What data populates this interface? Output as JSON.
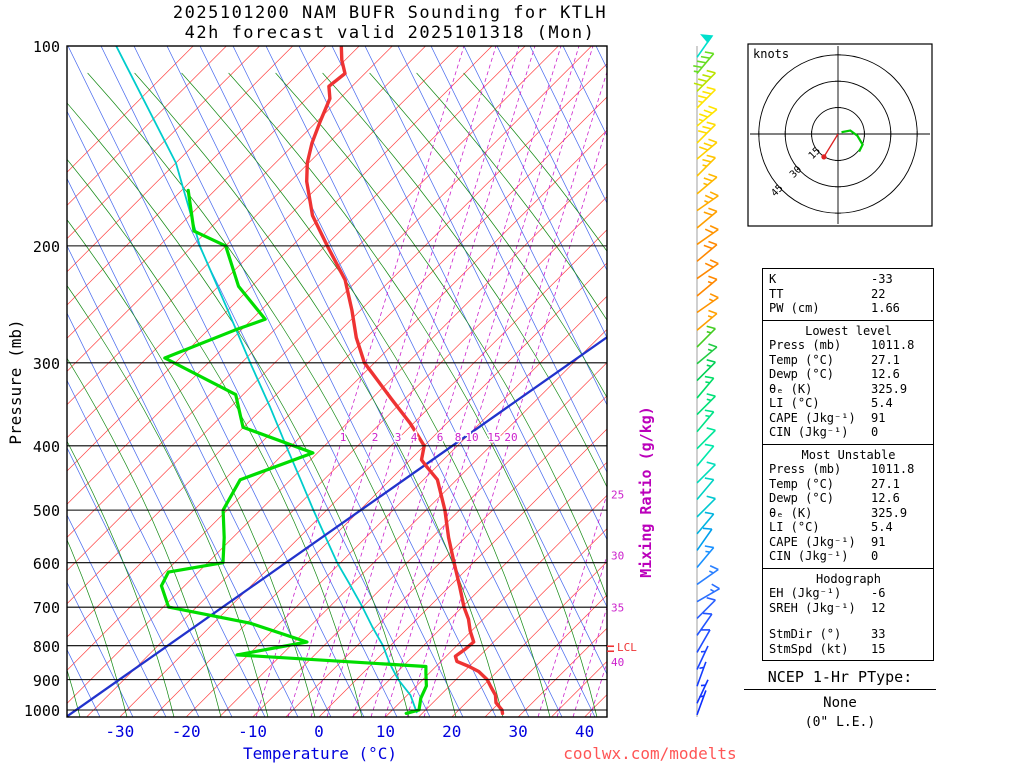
{
  "title": {
    "line1": "2025101200 NAM BUFR Sounding for KTLH",
    "line2": "42h forecast valid 2025101318 (Mon)"
  },
  "watermark": "coolwx.com/modelts",
  "axes": {
    "xlabel": "Temperature (°C)",
    "ylabel": "Pressure (mb)",
    "mixing_axis_label": "Mixing Ratio (g/kg)",
    "x_ticks": [
      -30,
      -20,
      -10,
      0,
      10,
      20,
      30,
      40
    ],
    "p_ticks": [
      100,
      200,
      300,
      400,
      500,
      600,
      700,
      800,
      900,
      1000
    ]
  },
  "colors": {
    "temperature": "#ee3333",
    "dewpoint": "#00dd00",
    "wetbulb": "#00cccc",
    "isotherm": "#ff4444",
    "dry_adiabat": "#4466ee",
    "moist_adiabat": "#118811",
    "mixing_ratio": "#cc22cc",
    "axis_blue": "#0000dd",
    "reference_blue": "#2233cc",
    "watermark_red": "#ff5555",
    "hodo_trace_green": "#00cc00",
    "hodo_storm_red": "#dd2222"
  },
  "chart_data": {
    "type": "line",
    "subtype": "skew-t-log-p-sounding",
    "skewt": {
      "pressure_range_mb": [
        100,
        1025
      ],
      "temp_axis_range_c": [
        -40,
        45
      ],
      "isotherm_step_c": 5,
      "lcl_label": "LCL",
      "lcl_pressure_mb": 810,
      "temperature_profile": [
        [
          1012,
          27.1
        ],
        [
          1000,
          26.5
        ],
        [
          975,
          24.5
        ],
        [
          950,
          23.3
        ],
        [
          925,
          21.5
        ],
        [
          900,
          19.7
        ],
        [
          875,
          17.2
        ],
        [
          860,
          15.0
        ],
        [
          845,
          12.4
        ],
        [
          830,
          11.4
        ],
        [
          810,
          11.8
        ],
        [
          790,
          12.0
        ],
        [
          760,
          9.8
        ],
        [
          730,
          7.8
        ],
        [
          700,
          5.3
        ],
        [
          650,
          1.4
        ],
        [
          600,
          -2.9
        ],
        [
          550,
          -7.5
        ],
        [
          500,
          -12.2
        ],
        [
          450,
          -17.9
        ],
        [
          430,
          -21.5
        ],
        [
          420,
          -23.3
        ],
        [
          400,
          -25.0
        ],
        [
          370,
          -30.5
        ],
        [
          340,
          -37.0
        ],
        [
          310,
          -44.0
        ],
        [
          300,
          -46.5
        ],
        [
          275,
          -51.5
        ],
        [
          250,
          -56.3
        ],
        [
          225,
          -61.9
        ],
        [
          200,
          -69.7
        ],
        [
          180,
          -76.5
        ],
        [
          160,
          -82.5
        ],
        [
          150,
          -85.2
        ],
        [
          140,
          -87.5
        ],
        [
          130,
          -89.5
        ],
        [
          120,
          -91.5
        ],
        [
          115,
          -93.5
        ],
        [
          110,
          -93.0
        ],
        [
          105,
          -95.5
        ],
        [
          100,
          -97.7
        ]
      ],
      "dewpoint_profile": [
        [
          1012,
          12.6
        ],
        [
          1000,
          14.0
        ],
        [
          960,
          12.5
        ],
        [
          920,
          11.5
        ],
        [
          880,
          9.5
        ],
        [
          860,
          8.5
        ],
        [
          826,
          -21.7
        ],
        [
          790,
          -13.1
        ],
        [
          740,
          -24.5
        ],
        [
          700,
          -39.2
        ],
        [
          650,
          -43.5
        ],
        [
          620,
          -44.5
        ],
        [
          600,
          -37.7
        ],
        [
          550,
          -41.3
        ],
        [
          500,
          -45.6
        ],
        [
          450,
          -47.6
        ],
        [
          410,
          -40.7
        ],
        [
          375,
          -55.1
        ],
        [
          335,
          -61.1
        ],
        [
          295,
          -77.3
        ],
        [
          268,
          -71.0
        ],
        [
          258,
          -68.0
        ],
        [
          230,
          -77.0
        ],
        [
          200,
          -85.0
        ],
        [
          190,
          -92.0
        ],
        [
          165,
          -99.0
        ]
      ],
      "wetbulb_profile": [
        [
          1008,
          14.0
        ],
        [
          950,
          10.5
        ],
        [
          900,
          6.3
        ],
        [
          850,
          2.5
        ],
        [
          800,
          -1.1
        ],
        [
          750,
          -5.5
        ],
        [
          700,
          -10.0
        ],
        [
          650,
          -15.0
        ],
        [
          600,
          -20.5
        ],
        [
          550,
          -26.0
        ],
        [
          500,
          -32.0
        ],
        [
          450,
          -38.5
        ],
        [
          400,
          -45.8
        ],
        [
          350,
          -54.0
        ],
        [
          300,
          -63.7
        ],
        [
          250,
          -75.0
        ],
        [
          200,
          -88.9
        ],
        [
          150,
          -105.0
        ],
        [
          100,
          -131.6
        ]
      ],
      "reference_line": [
        [
          1020,
          -38.0
        ],
        [
          270,
          -13.5
        ]
      ],
      "mixing_ratio_lines": [
        [
          1,
          256
        ],
        [
          2,
          288
        ],
        [
          3,
          311
        ],
        [
          4,
          327
        ],
        [
          6,
          353
        ],
        [
          8,
          371
        ],
        [
          10,
          385
        ],
        [
          15,
          407
        ],
        [
          20,
          424
        ],
        [
          25,
          538
        ],
        [
          30,
          557
        ],
        [
          35,
          573
        ],
        [
          40,
          590
        ]
      ]
    },
    "wind_barbs": [
      {
        "p": 104,
        "dir": 35,
        "spd": 50,
        "color": "#00e0cc"
      },
      {
        "p": 110,
        "dir": 40,
        "spd": 45,
        "color": "#66dd22"
      },
      {
        "p": 117,
        "dir": 45,
        "spd": 40,
        "color": "#bbe300"
      },
      {
        "p": 124,
        "dir": 45,
        "spd": 35,
        "color": "#ffe400"
      },
      {
        "p": 132,
        "dir": 50,
        "spd": 35,
        "color": "#ffe400"
      },
      {
        "p": 140,
        "dir": 45,
        "spd": 30,
        "color": "#ffdc00"
      },
      {
        "p": 148,
        "dir": 50,
        "spd": 30,
        "color": "#ffd000"
      },
      {
        "p": 157,
        "dir": 45,
        "spd": 25,
        "color": "#ffc400"
      },
      {
        "p": 167,
        "dir": 50,
        "spd": 25,
        "color": "#ffb800"
      },
      {
        "p": 177,
        "dir": 55,
        "spd": 25,
        "color": "#ffac00"
      },
      {
        "p": 188,
        "dir": 50,
        "spd": 20,
        "color": "#ffa000"
      },
      {
        "p": 199,
        "dir": 55,
        "spd": 20,
        "color": "#ff9400"
      },
      {
        "p": 211,
        "dir": 50,
        "spd": 20,
        "color": "#ff8800"
      },
      {
        "p": 224,
        "dir": 55,
        "spd": 20,
        "color": "#ff8800"
      },
      {
        "p": 238,
        "dir": 50,
        "spd": 15,
        "color": "#ff8800"
      },
      {
        "p": 252,
        "dir": 55,
        "spd": 15,
        "color": "#ff9400"
      },
      {
        "p": 268,
        "dir": 50,
        "spd": 15,
        "color": "#ffa000"
      },
      {
        "p": 284,
        "dir": 45,
        "spd": 15,
        "color": "#44cc22"
      },
      {
        "p": 301,
        "dir": 50,
        "spd": 15,
        "color": "#22cc44"
      },
      {
        "p": 319,
        "dir": 45,
        "spd": 15,
        "color": "#00d055"
      },
      {
        "p": 339,
        "dir": 40,
        "spd": 15,
        "color": "#00dd66"
      },
      {
        "p": 359,
        "dir": 45,
        "spd": 15,
        "color": "#00e077"
      },
      {
        "p": 381,
        "dir": 40,
        "spd": 15,
        "color": "#00e388"
      },
      {
        "p": 404,
        "dir": 45,
        "spd": 10,
        "color": "#00e699"
      },
      {
        "p": 429,
        "dir": 40,
        "spd": 10,
        "color": "#00e8aa"
      },
      {
        "p": 455,
        "dir": 45,
        "spd": 10,
        "color": "#00ddbb"
      },
      {
        "p": 482,
        "dir": 40,
        "spd": 10,
        "color": "#00d2c4"
      },
      {
        "p": 512,
        "dir": 45,
        "spd": 10,
        "color": "#00c8d0"
      },
      {
        "p": 543,
        "dir": 40,
        "spd": 10,
        "color": "#00b4e0"
      },
      {
        "p": 575,
        "dir": 35,
        "spd": 10,
        "color": "#00a0ee"
      },
      {
        "p": 610,
        "dir": 40,
        "spd": 15,
        "color": "#1890ff"
      },
      {
        "p": 647,
        "dir": 55,
        "spd": 15,
        "color": "#2a80ff"
      },
      {
        "p": 687,
        "dir": 60,
        "spd": 15,
        "color": "#2a70ff"
      },
      {
        "p": 728,
        "dir": 45,
        "spd": 10,
        "color": "#2a60ff"
      },
      {
        "p": 772,
        "dir": 35,
        "spd": 10,
        "color": "#2255ff"
      },
      {
        "p": 819,
        "dir": 30,
        "spd": 10,
        "color": "#1f4dff"
      },
      {
        "p": 869,
        "dir": 25,
        "spd": 5,
        "color": "#1a44ff"
      },
      {
        "p": 921,
        "dir": 20,
        "spd": 5,
        "color": "#143cff"
      },
      {
        "p": 977,
        "dir": 25,
        "spd": 5,
        "color": "#1034ff"
      },
      {
        "p": 1017,
        "dir": 20,
        "spd": 5,
        "color": "#0d2eff"
      }
    ],
    "hodograph": {
      "unit": "knots",
      "rings_kt": [
        15,
        30,
        45
      ],
      "trace_uv": [
        [
          2,
          1
        ],
        [
          7,
          2
        ],
        [
          11,
          -1
        ],
        [
          14,
          -6
        ],
        [
          12,
          -10
        ]
      ],
      "storm_uv": [
        -8,
        -13
      ]
    }
  },
  "stats": {
    "indices": {
      "rows": [
        [
          "K",
          "-33"
        ],
        [
          "TT",
          "22"
        ],
        [
          "PW (cm)",
          "1.66"
        ]
      ]
    },
    "lowest_level": {
      "title": "Lowest level",
      "rows": [
        [
          "Press (mb)",
          "1011.8"
        ],
        [
          "Temp (°C)",
          "27.1"
        ],
        [
          "Dewp (°C)",
          "12.6"
        ],
        [
          "θₑ (K)",
          "325.9"
        ],
        [
          "LI (°C)",
          "5.4"
        ],
        [
          "CAPE (Jkg⁻¹)",
          "91"
        ],
        [
          "CIN (Jkg⁻¹)",
          "0"
        ]
      ]
    },
    "most_unstable": {
      "title": "Most Unstable",
      "rows": [
        [
          "Press (mb)",
          "1011.8"
        ],
        [
          "Temp (°C)",
          "27.1"
        ],
        [
          "Dewp (°C)",
          "12.6"
        ],
        [
          "θₑ (K)",
          "325.9"
        ],
        [
          "LI (°C)",
          "5.4"
        ],
        [
          "CAPE (Jkg⁻¹)",
          "91"
        ],
        [
          "CIN (Jkg⁻¹)",
          "0"
        ]
      ]
    },
    "hodograph_section": {
      "title": "Hodograph",
      "rows": [
        [
          "EH (Jkg⁻¹)",
          "-6"
        ],
        [
          "SREH (Jkg⁻¹)",
          "12"
        ],
        null,
        [
          "StmDir (°)",
          "33"
        ],
        [
          "StmSpd (kt)",
          "15"
        ]
      ]
    },
    "ptype": {
      "heading": "NCEP 1-Hr PType:",
      "value": "None",
      "note": "(0\" L.E.)"
    }
  }
}
